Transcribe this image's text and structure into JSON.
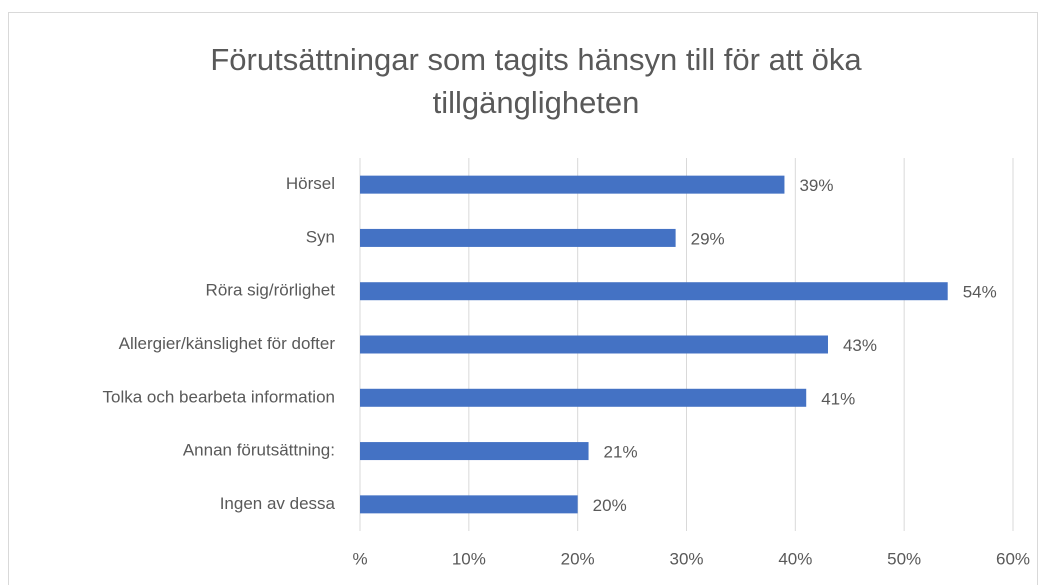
{
  "chart_data": {
    "type": "barh",
    "title": "Förutsättningar som tagits hänsyn till för att öka tillgängligheten",
    "categories": [
      "Hörsel",
      "Syn",
      "Röra sig/rörlighet",
      "Allergier/känslighet för dofter",
      "Tolka och bearbeta information",
      "Annan förutsättning:",
      "Ingen av dessa"
    ],
    "values": [
      39,
      29,
      54,
      43,
      41,
      21,
      20
    ],
    "value_labels": [
      "39%",
      "29%",
      "54%",
      "43%",
      "41%",
      "21%",
      "20%"
    ],
    "color": "#4472c4",
    "xlim": [
      0,
      60
    ],
    "xticks": [
      {
        "value": 0,
        "label": "%"
      },
      {
        "value": 10,
        "label": "10%"
      },
      {
        "value": 20,
        "label": "20%"
      },
      {
        "value": 30,
        "label": "30%"
      },
      {
        "value": 40,
        "label": "40%"
      },
      {
        "value": 50,
        "label": "50%"
      },
      {
        "value": 60,
        "label": "60%"
      }
    ],
    "grid": true
  }
}
